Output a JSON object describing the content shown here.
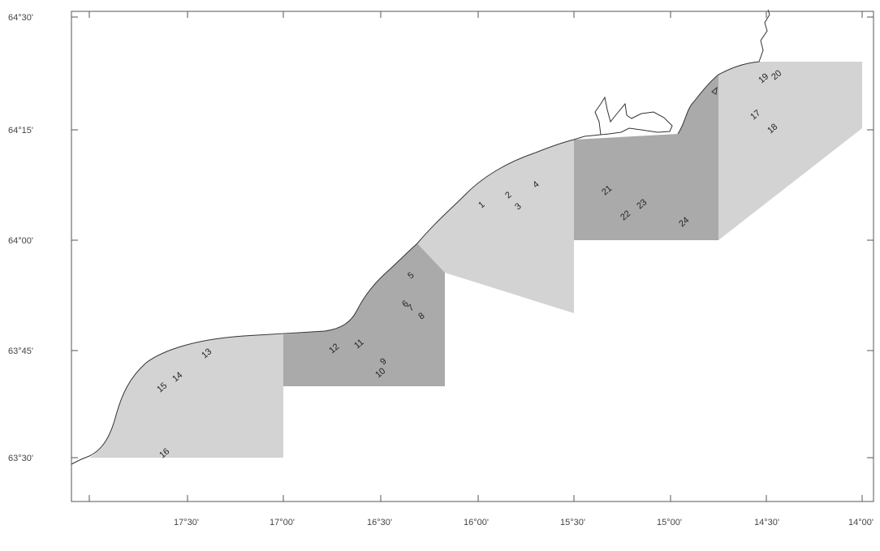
{
  "map": {
    "y_axis_labels": [
      "64°30'",
      "64°15'",
      "64°00'",
      "63°45'",
      "63°30'"
    ],
    "x_axis_labels": [
      "17°30'",
      "17°00'",
      "16°30'",
      "16°00'",
      "15°30'",
      "15°00'",
      "14°30'",
      "14°00'"
    ],
    "station_labels": [
      "1",
      "2",
      "3",
      "4",
      "5",
      "6",
      "7",
      "8",
      "9",
      "10",
      "11",
      "12",
      "13",
      "14",
      "15",
      "16",
      "17",
      "18",
      "19",
      "20",
      "21",
      "22",
      "23",
      "24"
    ],
    "colors": {
      "background": "#ffffff",
      "light_zone": "#d3d3d3",
      "dark_zone": "#aaaaaa",
      "coastline": "#333333",
      "frame": "#555555"
    }
  }
}
